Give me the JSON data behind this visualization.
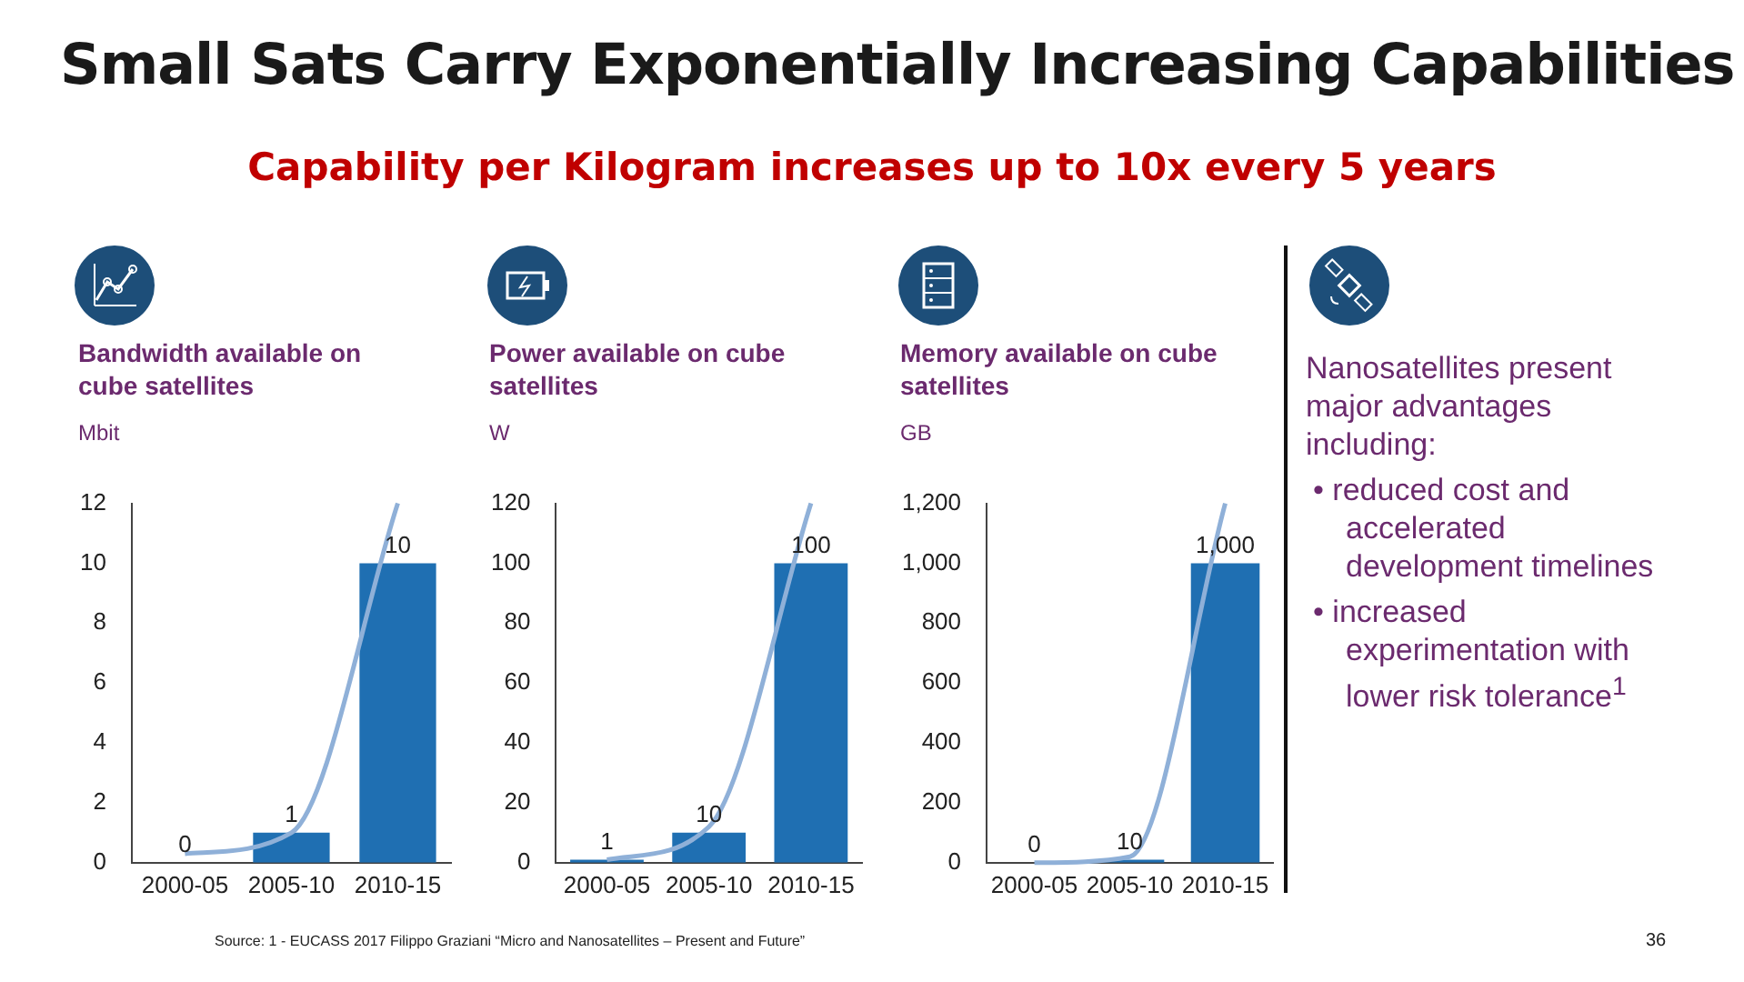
{
  "chart_data": [
    {
      "type": "bar",
      "title": "Bandwidth available on cube satellites",
      "ylabel": "Mbit",
      "categories": [
        "2000-05",
        "2005-10",
        "2010-15"
      ],
      "ylim": [
        0,
        12
      ],
      "yticks": [
        0,
        2,
        4,
        6,
        8,
        10,
        12
      ],
      "grid": false,
      "legend": false,
      "marker": "none",
      "series": [
        {
          "type": "bar",
          "color": "#1f6fb2",
          "values": [
            0,
            1,
            10
          ],
          "value_labels": [
            "0",
            "1",
            "10"
          ]
        },
        {
          "type": "line",
          "color": "#8fb0d8",
          "values": [
            0.3,
            1,
            12
          ]
        }
      ]
    },
    {
      "type": "bar",
      "title": "Power available on cube satellites",
      "ylabel": "W",
      "categories": [
        "2000-05",
        "2005-10",
        "2010-15"
      ],
      "ylim": [
        0,
        120
      ],
      "yticks": [
        0,
        20,
        40,
        60,
        80,
        100,
        120
      ],
      "grid": false,
      "legend": false,
      "marker": "none",
      "series": [
        {
          "type": "bar",
          "color": "#1f6fb2",
          "values": [
            1,
            10,
            100
          ],
          "value_labels": [
            "1",
            "10",
            "100"
          ]
        },
        {
          "type": "line",
          "color": "#8fb0d8",
          "values": [
            1,
            12,
            120
          ]
        }
      ]
    },
    {
      "type": "bar",
      "title": "Memory available on cube satellites",
      "ylabel": "GB",
      "categories": [
        "2000-05",
        "2005-10",
        "2010-15"
      ],
      "ylim": [
        0,
        1200
      ],
      "yticks": [
        0,
        {
          "value": 200,
          "label": "200"
        },
        {
          "value": 400,
          "label": "400"
        },
        {
          "value": 600,
          "label": "600"
        },
        {
          "value": 800,
          "label": "800"
        },
        {
          "value": 1000,
          "label": "1,000"
        },
        {
          "value": 1200,
          "label": "1,200"
        }
      ],
      "grid": false,
      "legend": false,
      "marker": "none",
      "series": [
        {
          "type": "bar",
          "color": "#1f6fb2",
          "values": [
            0,
            10,
            1000
          ],
          "value_labels": [
            "0",
            "10",
            "1,000"
          ]
        },
        {
          "type": "line",
          "color": "#8fb0d8",
          "values": [
            0,
            20,
            1200
          ]
        }
      ]
    },
    {
      "type": "other",
      "title": "Small Sats Carry Exponentially Increasing Capabilities",
      "subtitle": "Capability per Kilogram increases up to 10x every 5 years",
      "annotations": [
        "Nanosatellites present major advantages including:",
        "• reduced cost and accelerated development timelines",
        "• increased experimentation with lower risk tolerance$^{1}$",
        "Source: 1 - EUCASS 2017 Filippo Graziani “Micro and Nanosatellites – Present and Future”",
        "36"
      ]
    }
  ]
}
